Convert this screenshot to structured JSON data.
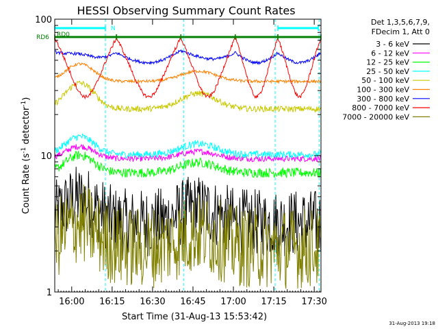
{
  "chart_data": {
    "type": "line",
    "title": "HESSI Observing Summary Count Rates",
    "xlabel": "Start Time (31-Aug-13 15:53:42)",
    "ylabel_main": "Count Rate (s",
    "ylabel_sup1": "-1",
    "ylabel_mid": " detector",
    "ylabel_sup2": "-1",
    "ylabel_end": ")",
    "yscale": "log",
    "ylim": [
      1,
      100
    ],
    "xlim_minutes": [
      -6.3,
      92.5
    ],
    "x_ticks": [
      {
        "label": "16:00",
        "min": 0
      },
      {
        "label": "16:15",
        "min": 15
      },
      {
        "label": "16:30",
        "min": 30
      },
      {
        "label": "16:45",
        "min": 45
      },
      {
        "label": "17:00",
        "min": 60
      },
      {
        "label": "17:15",
        "min": 75
      },
      {
        "label": "17:30",
        "min": 90
      }
    ],
    "y_ticks": [
      {
        "label": "1",
        "value": 1
      },
      {
        "label": "10",
        "value": 10
      },
      {
        "label": "100",
        "value": 100
      }
    ],
    "legend_header": [
      "Det 1,3,5,6,7,9,",
      "FDecim 1, Att 0"
    ],
    "legend_position": "right",
    "series": [
      {
        "name": "3 - 6 keV",
        "color": "#000000",
        "band": "low",
        "base": 3.2,
        "amp": 1.6,
        "noise": 0.25
      },
      {
        "name": "6 - 12 keV",
        "color": "#ff00ff",
        "base": 9.5,
        "amp": 2.2,
        "noise": 0.05
      },
      {
        "name": "12 - 25 keV",
        "color": "#00ff00",
        "base": 7.5,
        "amp": 2.6,
        "noise": 0.08
      },
      {
        "name": "25 - 50 keV",
        "color": "#00ffff",
        "base": 10.2,
        "amp": 3.6,
        "noise": 0.06
      },
      {
        "name": "50 - 100 keV",
        "color": "#c8c800",
        "base": 22,
        "amp": 12,
        "noise": 0.05
      },
      {
        "name": "100 - 300 keV",
        "color": "#ff8000",
        "base": 35,
        "amp": 12,
        "noise": 0.025
      },
      {
        "name": "300 - 800 keV",
        "color": "#0000ff",
        "base": 48,
        "amp": 12,
        "noise": 0.025
      },
      {
        "name": "800 - 7000 keV",
        "color": "#ff0000",
        "base": 27,
        "amp": 46,
        "noise": 0.03
      },
      {
        "name": "7000 - 20000 keV",
        "color": "#808000",
        "band": "lowest",
        "base": 2.1,
        "amp": 0.8,
        "noise": 0.3
      }
    ],
    "segments_minutes": [
      [
        -6.3,
        16.6
      ],
      [
        16.6,
        40.5
      ],
      [
        40.5,
        60.7
      ],
      [
        60.7,
        76.5
      ],
      [
        76.5,
        92.5
      ]
    ],
    "night_boundaries_minutes": [
      -6.3,
      12.5,
      41.5,
      75.5,
      91.8
    ],
    "flags": [
      {
        "label": "RD0",
        "color": "#00ffff",
        "y": 86,
        "ranges_min": [
          [
            -6.3,
            12.5
          ],
          [
            76.5,
            91.5
          ]
        ]
      },
      {
        "label": "N",
        "color": "#00ffff",
        "y": 86,
        "marker_min": 14.5
      },
      {
        "label": "RD6",
        "color": "#008000",
        "y": 74,
        "ranges_min": [
          [
            -6.3,
            16.6
          ],
          [
            16.6,
            40.5
          ],
          [
            40.5,
            60.7
          ],
          [
            60.7,
            76.5
          ],
          [
            76.5,
            92.5
          ]
        ]
      }
    ],
    "grid": false
  },
  "footer_timestamp": "31-Aug-2013 19:18"
}
